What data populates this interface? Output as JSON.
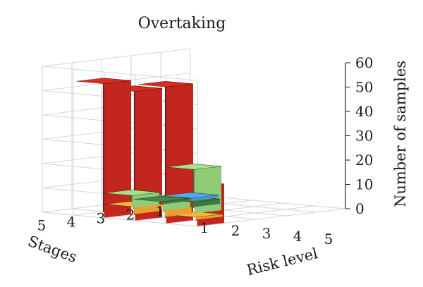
{
  "chart_data": {
    "type": "bar3d",
    "title": "Overtaking",
    "zlabel": "Number of samples",
    "xlabel": "Risk level",
    "ylabel": "Stages",
    "x_categories": [
      "1",
      "2",
      "3",
      "4",
      "5"
    ],
    "y_categories": [
      "1",
      "2",
      "3",
      "4",
      "5"
    ],
    "z_ticks": [
      "0",
      "10",
      "20",
      "30",
      "40",
      "50",
      "60"
    ],
    "zlim": [
      0,
      60
    ],
    "grid": true,
    "stage_colors": [
      "#4a98d0",
      "#3b7a42",
      "#90cc78",
      "#e8a030",
      "#c2261f"
    ],
    "values": [
      [
        1,
        0,
        0,
        0,
        0
      ],
      [
        1,
        2,
        0,
        0,
        0
      ],
      [
        5,
        4,
        18,
        0,
        0
      ],
      [
        0,
        3,
        3,
        1,
        0
      ],
      [
        0,
        55,
        53,
        56,
        16
      ]
    ]
  }
}
